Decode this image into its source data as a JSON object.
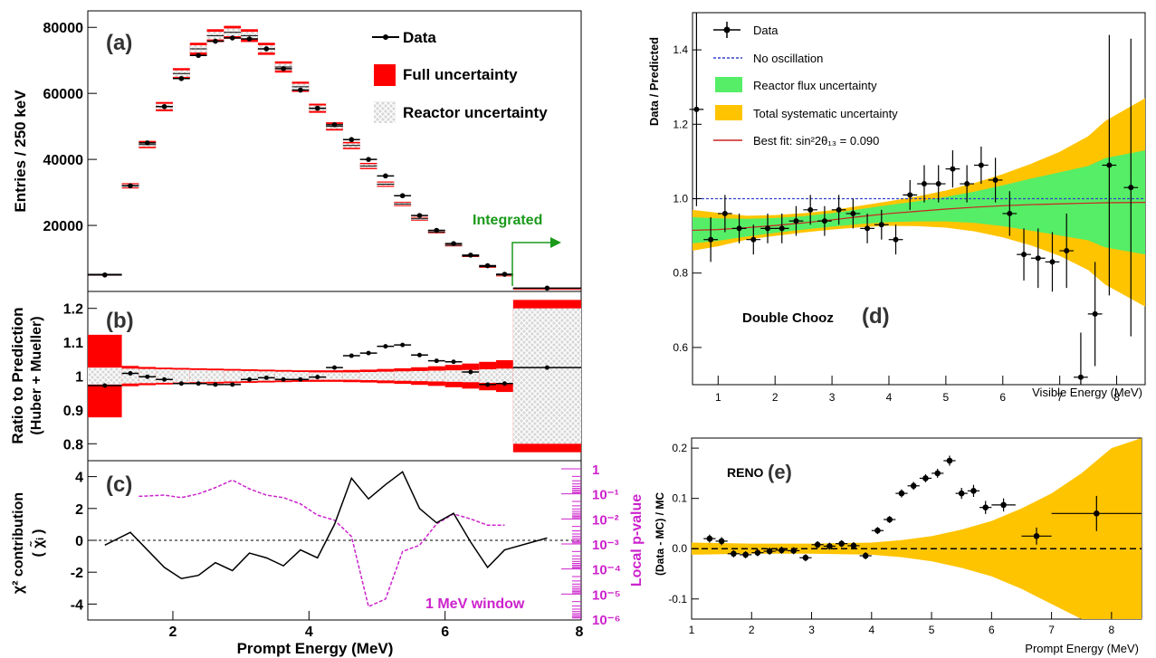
{
  "colors": {
    "full_unc": "#ff0000",
    "reactor_unc": "#d8d8d8",
    "integrated": "#1a9a1a",
    "pvalue": "#cc22cc",
    "flux_unc": "#55ee66",
    "total_syst": "#ffc400",
    "no_osc": "#3344cc",
    "best_fit": "#cc2222"
  },
  "chart_data": [
    {
      "panel": "(a)",
      "type": "scatter",
      "ylabel": "Entries / 250 keV",
      "xlim": [
        0.75,
        8
      ],
      "ylim": [
        0,
        85000
      ],
      "yticks": [
        "20000",
        "40000",
        "60000",
        "80000"
      ],
      "legend": [
        "Data",
        "Full uncertainty",
        "Reactor uncertainty"
      ],
      "annotation": "Integrated",
      "x": [
        1.0,
        1.375,
        1.625,
        1.875,
        2.125,
        2.375,
        2.625,
        2.875,
        3.125,
        3.375,
        3.625,
        3.875,
        4.125,
        4.375,
        4.625,
        4.875,
        5.125,
        5.375,
        5.625,
        5.875,
        6.125,
        6.375,
        6.625,
        6.875,
        7.5
      ],
      "data": [
        5000,
        32000,
        45000,
        56000,
        64500,
        71500,
        75800,
        76800,
        76500,
        73500,
        67500,
        61000,
        55500,
        50500,
        46000,
        40000,
        35000,
        29000,
        23000,
        18500,
        14500,
        11000,
        7800,
        5200,
        1000
      ],
      "pred": [
        5200,
        32000,
        44500,
        56000,
        66000,
        73500,
        77500,
        78500,
        77500,
        73500,
        68000,
        62000,
        55500,
        50000,
        44200,
        38000,
        32500,
        26500,
        22000,
        18000,
        14000,
        10700,
        7500,
        5000,
        1000
      ]
    },
    {
      "panel": "(b)",
      "type": "scatter",
      "ylabel": "Ratio to Prediction (Huber + Mueller)",
      "ylim": [
        0.75,
        1.25
      ],
      "yticks": [
        "0.8",
        "0.9",
        "1",
        "1.1",
        "1.2"
      ],
      "x": [
        1.0,
        1.375,
        1.625,
        1.875,
        2.125,
        2.375,
        2.625,
        2.875,
        3.125,
        3.375,
        3.625,
        3.875,
        4.125,
        4.375,
        4.625,
        4.875,
        5.125,
        5.375,
        5.625,
        5.875,
        6.125,
        6.375,
        6.625,
        6.875,
        7.5
      ],
      "ratio": [
        0.972,
        1.008,
        0.998,
        0.99,
        0.978,
        0.978,
        0.975,
        0.975,
        0.99,
        0.995,
        0.99,
        0.99,
        0.997,
        1.025,
        1.06,
        1.068,
        1.088,
        1.092,
        1.062,
        1.045,
        1.042,
        1.012,
        0.975,
        0.978,
        1.025
      ],
      "full_half": [
        0.122,
        0.03,
        0.027,
        0.025,
        0.024,
        0.023,
        0.022,
        0.021,
        0.02,
        0.019,
        0.018,
        0.017,
        0.017,
        0.017,
        0.018,
        0.019,
        0.021,
        0.023,
        0.026,
        0.029,
        0.033,
        0.037,
        0.042,
        0.047,
        0.225
      ],
      "reactor_half": [
        0.025,
        0.022,
        0.021,
        0.02,
        0.019,
        0.018,
        0.017,
        0.016,
        0.015,
        0.014,
        0.013,
        0.012,
        0.011,
        0.011,
        0.011,
        0.012,
        0.013,
        0.014,
        0.015,
        0.016,
        0.017,
        0.018,
        0.02,
        0.022,
        0.2
      ]
    },
    {
      "panel": "(c)",
      "type": "line",
      "xlabel": "Prompt Energy (MeV)",
      "ylabel": "χ² contribution ( χ̃ᵢ )",
      "y2label": "Local p-value",
      "ylim": [
        -5,
        5
      ],
      "yticks": [
        "-4",
        "-2",
        "0",
        "2",
        "4"
      ],
      "xticks": [
        "2",
        "4",
        "6",
        "8"
      ],
      "annotation": "1 MeV window",
      "chi_x": [
        1.0,
        1.375,
        1.625,
        1.875,
        2.125,
        2.375,
        2.625,
        2.875,
        3.125,
        3.375,
        3.625,
        3.875,
        4.125,
        4.375,
        4.625,
        4.875,
        5.125,
        5.375,
        5.625,
        5.875,
        6.125,
        6.375,
        6.625,
        6.875,
        7.5
      ],
      "chi": [
        -0.3,
        0.5,
        -0.6,
        -1.7,
        -2.4,
        -2.2,
        -1.4,
        -1.9,
        -0.8,
        -1.1,
        -1.6,
        -0.6,
        -1.1,
        1.0,
        3.9,
        2.6,
        3.5,
        4.3,
        2.0,
        1.1,
        1.7,
        -0.1,
        -1.7,
        -0.6,
        0.15
      ],
      "pval_x": [
        1.5,
        1.875,
        2.125,
        2.375,
        2.625,
        2.875,
        3.125,
        3.375,
        3.625,
        3.875,
        4.125,
        4.375,
        4.625,
        4.875,
        5.125,
        5.375,
        5.625,
        5.875,
        6.125,
        6.375,
        6.625,
        6.875
      ],
      "pval_log": [
        -1.1,
        -1.05,
        -1.15,
        -1.0,
        -0.75,
        -0.45,
        -0.8,
        -1.05,
        -1.15,
        -1.4,
        -1.85,
        -2.05,
        -2.7,
        -5.5,
        -5.2,
        -3.3,
        -3.05,
        -2.2,
        -1.8,
        -2.0,
        -2.25,
        -2.25
      ],
      "y2ticks": [
        "1",
        "10⁻¹",
        "10⁻²",
        "10⁻³",
        "10⁻⁴",
        "10⁻⁵",
        "10⁻⁶"
      ],
      "xtick_8": "8"
    },
    {
      "panel": "(d)",
      "type": "scatter",
      "title": "Double Chooz",
      "label": "(d)",
      "xlabel": "Visible Energy (MeV)",
      "ylabel": "Data / Predicted",
      "xlim": [
        0.55,
        8.5
      ],
      "ylim": [
        0.5,
        1.5
      ],
      "xticks": [
        "1",
        "2",
        "3",
        "4",
        "5",
        "6",
        "7",
        "8"
      ],
      "yticks": [
        "0.6",
        "0.8",
        "1.0",
        "1.2",
        "1.4"
      ],
      "legend": [
        "Data",
        "No oscillation",
        "Reactor flux uncertainty",
        "Total systematic uncertainty",
        "Best fit: sin²2θ₁₃ = 0.090"
      ],
      "x": [
        0.62,
        0.87,
        1.12,
        1.37,
        1.62,
        1.87,
        2.12,
        2.37,
        2.62,
        2.87,
        3.12,
        3.37,
        3.62,
        3.87,
        4.12,
        4.37,
        4.62,
        4.87,
        5.12,
        5.37,
        5.62,
        5.87,
        6.12,
        6.37,
        6.62,
        6.87,
        7.12,
        7.37,
        7.62,
        7.87,
        8.25
      ],
      "y": [
        1.24,
        0.89,
        0.96,
        0.92,
        0.89,
        0.92,
        0.92,
        0.94,
        0.97,
        0.94,
        0.97,
        0.96,
        0.92,
        0.93,
        0.89,
        1.01,
        1.04,
        1.04,
        1.08,
        1.04,
        1.09,
        1.05,
        0.96,
        0.85,
        0.84,
        0.83,
        0.86,
        0.52,
        0.69,
        1.09,
        1.03
      ],
      "yerr": [
        0.26,
        0.06,
        0.05,
        0.04,
        0.04,
        0.04,
        0.04,
        0.04,
        0.04,
        0.04,
        0.04,
        0.04,
        0.04,
        0.04,
        0.04,
        0.04,
        0.05,
        0.05,
        0.05,
        0.05,
        0.05,
        0.06,
        0.06,
        0.07,
        0.08,
        0.08,
        0.1,
        0.12,
        0.14,
        0.35,
        0.4
      ],
      "band_x": [
        0.55,
        1.0,
        1.5,
        2.0,
        2.5,
        3.0,
        3.5,
        4.0,
        4.5,
        5.0,
        5.5,
        6.0,
        6.5,
        7.0,
        7.5,
        7.8,
        8.5
      ],
      "best_fit": [
        0.915,
        0.917,
        0.922,
        0.928,
        0.935,
        0.943,
        0.952,
        0.96,
        0.966,
        0.972,
        0.977,
        0.981,
        0.984,
        0.986,
        0.988,
        0.989,
        0.99
      ],
      "flux_half": [
        0.035,
        0.03,
        0.024,
        0.02,
        0.018,
        0.018,
        0.02,
        0.023,
        0.027,
        0.033,
        0.042,
        0.055,
        0.07,
        0.085,
        0.1,
        0.12,
        0.14
      ],
      "total_half": [
        0.055,
        0.045,
        0.032,
        0.028,
        0.026,
        0.026,
        0.029,
        0.033,
        0.04,
        0.05,
        0.065,
        0.085,
        0.11,
        0.14,
        0.18,
        0.22,
        0.28
      ]
    },
    {
      "panel": "(e)",
      "type": "scatter",
      "title": "RENO",
      "label": "(e)",
      "xlabel": "Prompt Energy (MeV)",
      "ylabel": "(Data - MC) / MC",
      "xlim": [
        1,
        8.5
      ],
      "ylim": [
        -0.14,
        0.22
      ],
      "xticks": [
        "1",
        "2",
        "3",
        "4",
        "5",
        "6",
        "7",
        "8"
      ],
      "yticks": [
        "-0.1",
        "0.0",
        "0.1",
        "0.2"
      ],
      "x": [
        1.3,
        1.5,
        1.7,
        1.9,
        2.1,
        2.3,
        2.5,
        2.7,
        2.9,
        3.1,
        3.3,
        3.5,
        3.7,
        3.9,
        4.1,
        4.3,
        4.5,
        4.7,
        4.9,
        5.1,
        5.3,
        5.5,
        5.7,
        5.9,
        6.2,
        6.75,
        7.75
      ],
      "y": [
        0.02,
        0.015,
        -0.01,
        -0.012,
        -0.008,
        -0.005,
        -0.003,
        -0.004,
        -0.018,
        0.008,
        0.005,
        0.01,
        0.006,
        -0.014,
        0.036,
        0.058,
        0.11,
        0.125,
        0.14,
        0.15,
        0.175,
        0.11,
        0.115,
        0.082,
        0.087,
        0.025,
        0.07
      ],
      "xerr": [
        0.1,
        0.1,
        0.1,
        0.1,
        0.1,
        0.1,
        0.1,
        0.1,
        0.1,
        0.1,
        0.1,
        0.1,
        0.1,
        0.1,
        0.1,
        0.1,
        0.1,
        0.1,
        0.1,
        0.1,
        0.1,
        0.1,
        0.1,
        0.1,
        0.2,
        0.25,
        0.75
      ],
      "yerr": [
        0.008,
        0.008,
        0.007,
        0.007,
        0.007,
        0.007,
        0.007,
        0.007,
        0.007,
        0.007,
        0.007,
        0.007,
        0.007,
        0.007,
        0.007,
        0.007,
        0.008,
        0.008,
        0.008,
        0.009,
        0.01,
        0.011,
        0.012,
        0.013,
        0.013,
        0.017,
        0.035
      ],
      "band_x": [
        1.0,
        2.0,
        3.0,
        4.0,
        4.5,
        5.0,
        5.5,
        6.0,
        6.5,
        7.0,
        7.5,
        8.0,
        8.5
      ],
      "band_half": [
        0.012,
        0.01,
        0.01,
        0.012,
        0.017,
        0.025,
        0.038,
        0.055,
        0.08,
        0.11,
        0.15,
        0.2,
        0.25
      ]
    }
  ]
}
